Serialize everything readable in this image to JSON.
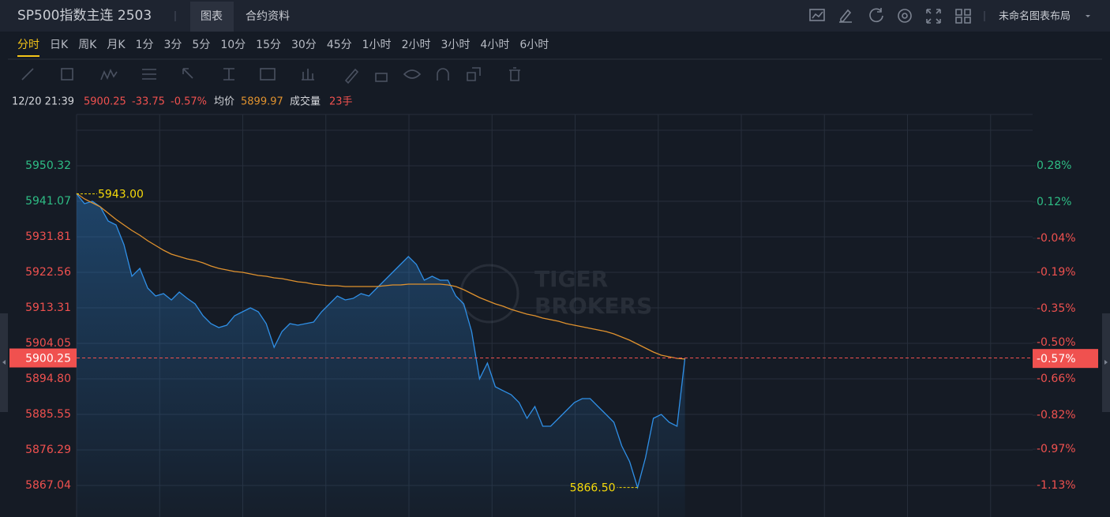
{
  "header": {
    "title": "SP500指数主连 2503",
    "tabs": [
      "图表",
      "合约资料"
    ],
    "layout_name": "未命名图表布局"
  },
  "periods": [
    "分时",
    "日K",
    "周K",
    "月K",
    "1分",
    "3分",
    "5分",
    "10分",
    "15分",
    "30分",
    "45分",
    "1小时",
    "2小时",
    "3小时",
    "4小时",
    "6小时"
  ],
  "info_bar": {
    "time": "12/20 21:39",
    "price": "5900.25",
    "change": "-33.75",
    "change_pct": "-0.57%",
    "avg_label": "均价",
    "avg": "5899.97",
    "volume_label": "成交量",
    "volume": "23手"
  },
  "watermark": [
    "TIGER",
    "BROKERS"
  ],
  "chart_data": {
    "type": "line",
    "ylim": [
      5858.82,
      5963.69
    ],
    "yticks": [
      {
        "value": 5950.32,
        "label": "5950.32"
      },
      {
        "value": 5941.07,
        "label": "5941.07"
      },
      {
        "value": 5931.81,
        "label": "5931.81"
      },
      {
        "value": 5922.56,
        "label": "5922.56"
      },
      {
        "value": 5913.31,
        "label": "5913.31"
      },
      {
        "value": 5904.05,
        "label": "5904.05"
      },
      {
        "value": 5894.8,
        "label": "5894.80"
      },
      {
        "value": 5885.55,
        "label": "5885.55"
      },
      {
        "value": 5876.29,
        "label": "5876.29"
      },
      {
        "value": 5867.04,
        "label": "5867.04"
      }
    ],
    "y2lim": [
      -1.269,
      0.506
    ],
    "y2ticks": [
      {
        "value": 0.28,
        "label": "0.28%"
      },
      {
        "value": 0.12,
        "label": "0.12%"
      },
      {
        "value": -0.04,
        "label": "-0.04%"
      },
      {
        "value": -0.19,
        "label": "-0.19%"
      },
      {
        "value": -0.35,
        "label": "-0.35%"
      },
      {
        "value": -0.5,
        "label": "-0.50%"
      },
      {
        "value": -0.66,
        "label": "-0.66%"
      },
      {
        "value": -0.82,
        "label": "-0.82%"
      },
      {
        "value": -0.97,
        "label": "-0.97%"
      },
      {
        "value": -1.13,
        "label": "-1.13%"
      }
    ],
    "grid": true,
    "up_color": "#2ebd85",
    "down_color": "#f0514f",
    "series": [
      {
        "name": "价格",
        "color": "#2f8fe6",
        "values": [
          5943.0,
          5940.45,
          5941.07,
          5939.63,
          5935.93,
          5934.9,
          5929.76,
          5921.54,
          5923.59,
          5918.45,
          5916.39,
          5917.01,
          5915.37,
          5917.42,
          5915.77,
          5914.33,
          5911.25,
          5909.19,
          5908.17,
          5908.78,
          5911.25,
          5912.28,
          5913.31,
          5912.28,
          5909.19,
          5903.02,
          5907.14,
          5909.19,
          5908.78,
          5909.19,
          5909.61,
          5912.28,
          5914.33,
          5916.39,
          5915.37,
          5915.77,
          5917.01,
          5916.39,
          5918.45,
          5920.5,
          5922.56,
          5924.62,
          5926.67,
          5924.62,
          5920.5,
          5921.54,
          5920.5,
          5920.5,
          5916.39,
          5914.33,
          5907.14,
          5894.8,
          5898.91,
          5892.74,
          5891.71,
          5890.69,
          5888.63,
          5884.52,
          5887.6,
          5882.46,
          5882.46,
          5884.52,
          5886.57,
          5888.63,
          5889.66,
          5889.66,
          5887.6,
          5885.55,
          5883.49,
          5877.32,
          5873.21,
          5866.5,
          5874.24,
          5884.52,
          5885.55,
          5883.49,
          5882.46,
          5900.25,
          null,
          null,
          null,
          null,
          null,
          null,
          null,
          null,
          null,
          null,
          null,
          null,
          null,
          null,
          null,
          null,
          null,
          null,
          null,
          null,
          null,
          null,
          null,
          null,
          null,
          null,
          null,
          null,
          null,
          null,
          null,
          null,
          null,
          null,
          null,
          null,
          null,
          null,
          null,
          null,
          null,
          null,
          null,
          null
        ]
      },
      {
        "name": "均价",
        "color": "#e0922e",
        "values": [
          5943.12,
          5941.68,
          5940.66,
          5939.63,
          5937.98,
          5936.34,
          5934.9,
          5933.46,
          5932.22,
          5930.79,
          5929.55,
          5928.32,
          5927.29,
          5926.67,
          5926.06,
          5925.64,
          5925.03,
          5924.21,
          5923.59,
          5923.18,
          5922.77,
          5922.56,
          5922.15,
          5921.74,
          5921.53,
          5921.12,
          5920.92,
          5920.5,
          5920.09,
          5919.89,
          5919.48,
          5919.27,
          5919.06,
          5919.06,
          5918.86,
          5918.86,
          5918.86,
          5918.86,
          5918.86,
          5919.06,
          5919.27,
          5919.27,
          5919.48,
          5919.48,
          5919.48,
          5919.48,
          5919.48,
          5919.27,
          5918.86,
          5918.04,
          5917.01,
          5915.98,
          5915.16,
          5914.34,
          5913.72,
          5912.9,
          5912.28,
          5911.66,
          5911.25,
          5910.63,
          5910.22,
          5909.81,
          5909.19,
          5908.78,
          5908.37,
          5907.96,
          5907.55,
          5907.14,
          5906.52,
          5905.7,
          5904.88,
          5903.85,
          5902.82,
          5901.79,
          5900.97,
          5900.56,
          5900.15,
          5899.97,
          null,
          null,
          null,
          null,
          null,
          null,
          null,
          null,
          null,
          null,
          null,
          null,
          null,
          null,
          null,
          null,
          null,
          null,
          null,
          null,
          null,
          null,
          null,
          null,
          null,
          null,
          null,
          null,
          null,
          null,
          null,
          null,
          null,
          null,
          null,
          null,
          null,
          null,
          null,
          null,
          null,
          null,
          null,
          null
        ]
      }
    ],
    "annotations": [
      {
        "value": 5943.0,
        "label": "5943.00"
      },
      {
        "value": 5866.5,
        "label": "5866.50"
      }
    ],
    "annotation_color": "#f5d90a",
    "last_price": {
      "value": 5900.25,
      "label": "5900.25"
    },
    "last_change": {
      "value": -0.57,
      "label": "-0.57%"
    }
  }
}
